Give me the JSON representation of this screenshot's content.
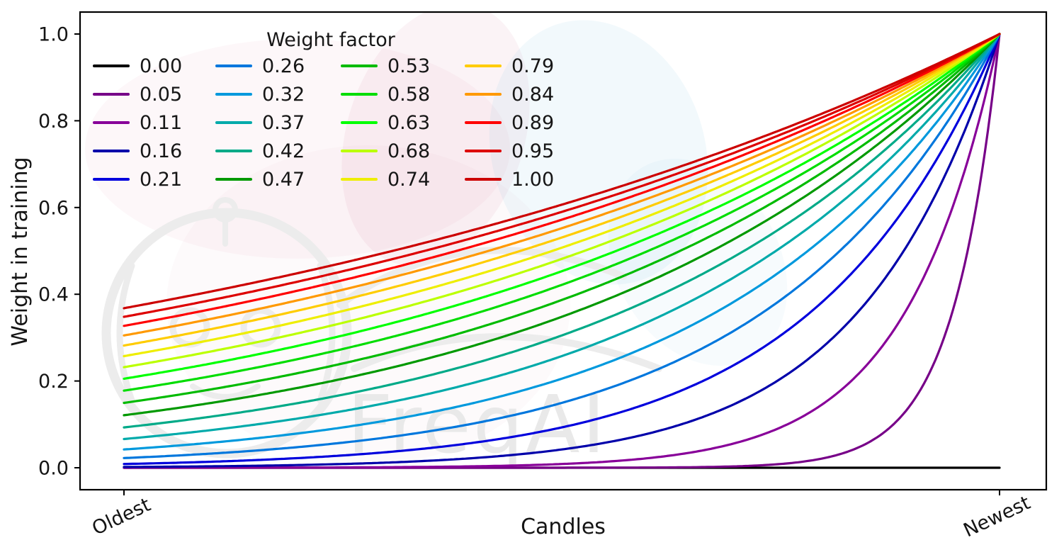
{
  "watermark": {
    "text": "FreqAI"
  },
  "colors": {
    "background": "#ffffff",
    "axis": "#000000",
    "text": "#141414",
    "watermark_gray": "#ececec",
    "watermark_pink": "#d67ba0",
    "watermark_blue": "#8cc8e1"
  },
  "chart_data": {
    "type": "line",
    "title": "",
    "legend_title": "Weight factor",
    "legend_position": "upper left",
    "legend_columns": 4,
    "grid": false,
    "xlabel": "Candles",
    "ylabel": "Weight in training",
    "x_tick_labels": [
      "Oldest",
      "Newest"
    ],
    "x_tick_rotation_deg": -25,
    "y_ticks": [
      0.0,
      0.2,
      0.4,
      0.6,
      0.8,
      1.0
    ],
    "y_tick_labels": [
      "0.0",
      "0.2",
      "0.4",
      "0.6",
      "0.8",
      "1.0"
    ],
    "x_range_normalized": [
      0,
      1
    ],
    "ylim": [
      -0.05,
      1.05
    ],
    "formula": "weight(x) = exp(-(1 - x) / weight_factor) for x in [0,1] (0 = oldest candle, 1 = newest); weight_factor = 0 gives a flat line at 0",
    "series": [
      {
        "label": "0.00",
        "weight_factor": 0.0,
        "color": "#000000"
      },
      {
        "label": "0.05",
        "weight_factor": 0.05263,
        "color": "#770088"
      },
      {
        "label": "0.11",
        "weight_factor": 0.10526,
        "color": "#880099"
      },
      {
        "label": "0.16",
        "weight_factor": 0.15789,
        "color": "#0000aa"
      },
      {
        "label": "0.21",
        "weight_factor": 0.21053,
        "color": "#0000dd"
      },
      {
        "label": "0.26",
        "weight_factor": 0.26316,
        "color": "#0077dd"
      },
      {
        "label": "0.32",
        "weight_factor": 0.31579,
        "color": "#0099dd"
      },
      {
        "label": "0.37",
        "weight_factor": 0.36842,
        "color": "#00aaaa"
      },
      {
        "label": "0.42",
        "weight_factor": 0.42105,
        "color": "#00aa88"
      },
      {
        "label": "0.47",
        "weight_factor": 0.47368,
        "color": "#009900"
      },
      {
        "label": "0.53",
        "weight_factor": 0.52632,
        "color": "#00bb00"
      },
      {
        "label": "0.58",
        "weight_factor": 0.57895,
        "color": "#00dd00"
      },
      {
        "label": "0.63",
        "weight_factor": 0.63158,
        "color": "#00ff00"
      },
      {
        "label": "0.68",
        "weight_factor": 0.68421,
        "color": "#bbff00"
      },
      {
        "label": "0.74",
        "weight_factor": 0.73684,
        "color": "#eeee00"
      },
      {
        "label": "0.79",
        "weight_factor": 0.78947,
        "color": "#ffcc00"
      },
      {
        "label": "0.84",
        "weight_factor": 0.84211,
        "color": "#ff9900"
      },
      {
        "label": "0.89",
        "weight_factor": 0.89474,
        "color": "#ff0000"
      },
      {
        "label": "0.95",
        "weight_factor": 0.94737,
        "color": "#dd0000"
      },
      {
        "label": "1.00",
        "weight_factor": 1.0,
        "color": "#cc0000"
      }
    ]
  }
}
